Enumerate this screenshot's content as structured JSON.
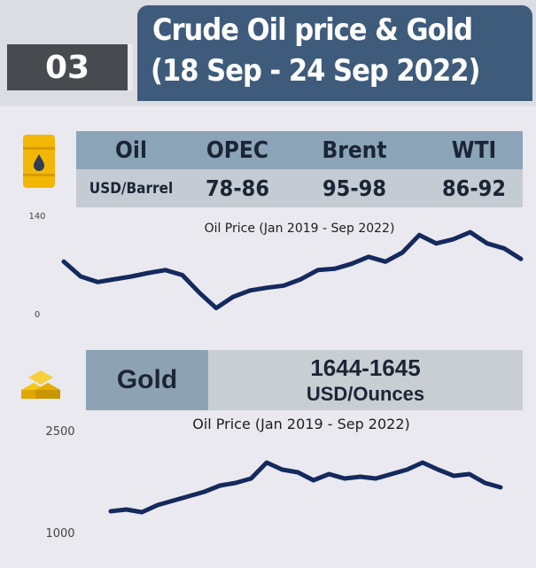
{
  "header": {
    "number": "03",
    "title_lines": [
      "Crude Oil price & Gold",
      "(18 Sep - 24 Sep 2022)"
    ]
  },
  "oil_table": {
    "header": [
      "Oil",
      "OPEC",
      "Brent",
      "WTI"
    ],
    "row": [
      "USD/Barrel",
      "78-86",
      "95-98",
      "86-92"
    ]
  },
  "gold_box": {
    "label": "Gold",
    "value": "1644-1645",
    "unit": "USD/Ounces"
  },
  "chart_data": [
    {
      "type": "line",
      "title": "Oil Price (Jan 2019 - Sep 2022)",
      "ylim": [
        0,
        140
      ],
      "yticks": [
        0,
        140
      ],
      "color": "#14295e",
      "values": [
        74,
        53,
        45,
        49,
        53,
        58,
        62,
        55,
        30,
        8,
        24,
        33,
        37,
        40,
        49,
        62,
        64,
        71,
        81,
        74,
        87,
        112,
        100,
        106,
        116,
        100,
        93,
        78
      ]
    },
    {
      "type": "line",
      "title": "Oil Price (Jan 2019 - Sep 2022)",
      "ylim": [
        1000,
        2500
      ],
      "yticks": [
        1000,
        2500
      ],
      "color": "#14295e",
      "values": [
        1326,
        1352,
        1313,
        1417,
        1483,
        1548,
        1613,
        1704,
        1743,
        1809,
        2043,
        1939,
        1900,
        1783,
        1874,
        1809,
        1835,
        1809,
        1874,
        1939,
        2043,
        1939,
        1848,
        1874,
        1743,
        1678
      ]
    }
  ]
}
